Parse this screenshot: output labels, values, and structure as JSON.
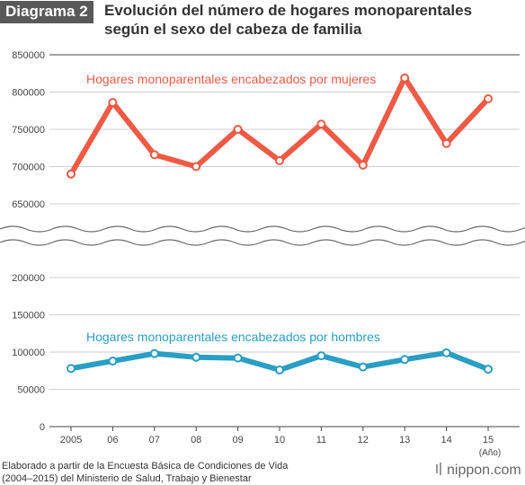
{
  "header": {
    "badge": "Diagrama 2",
    "title_line1": "Evolución del número de hogares monoparentales",
    "title_line2": "según el sexo del cabeza de familia"
  },
  "chart_data": {
    "type": "line",
    "categories": [
      "2005",
      "06",
      "07",
      "08",
      "09",
      "10",
      "11",
      "12",
      "13",
      "14",
      "15"
    ],
    "x_unit": "(Año)",
    "y_upper_ticks": [
      "850000",
      "800000",
      "750000",
      "700000",
      "650000"
    ],
    "y_lower_ticks": [
      "200000",
      "150000",
      "100000",
      "50000",
      "0"
    ],
    "y_upper_range": [
      650000,
      850000
    ],
    "y_lower_range": [
      0,
      200000
    ],
    "axis_break": true,
    "grid": true,
    "series": [
      {
        "name": "Hogares monoparentales encabezados por mujeres",
        "color": "#ee5a45",
        "values": [
          690000,
          786000,
          716000,
          700000,
          750000,
          708000,
          757000,
          702000,
          819000,
          731000,
          791000
        ]
      },
      {
        "name": "Hogares monoparentales encabezados por hombres",
        "color": "#2a9ec3",
        "values": [
          78000,
          88000,
          98000,
          93000,
          92000,
          76000,
          95000,
          80000,
          90000,
          99000,
          77000
        ]
      }
    ]
  },
  "footer": {
    "line1": "Elaborado a partir de la Encuesta Básica de Condiciones de Vida",
    "line2": "(2004–2015) del Ministerio de Salud, Trabajo y Bienestar"
  },
  "logo": {
    "text": "nippon.com"
  }
}
